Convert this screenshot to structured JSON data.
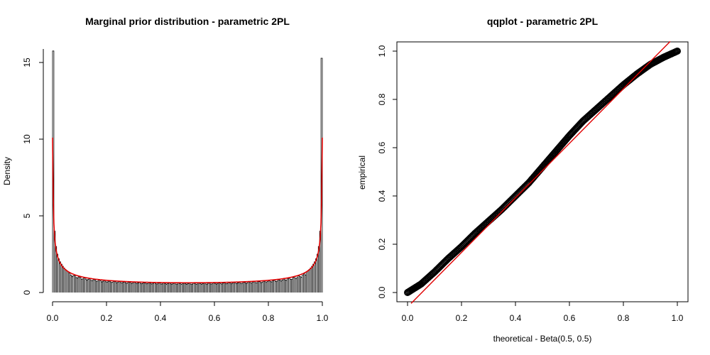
{
  "chart_data": [
    {
      "type": "bar",
      "subtype": "histogram with density curve",
      "title": "Marginal prior distribution - parametric 2PL",
      "xlabel": "",
      "ylabel": "Density",
      "xlim": [
        0,
        1
      ],
      "ylim": [
        0,
        15.75
      ],
      "xticks": [
        "0.0",
        "0.2",
        "0.4",
        "0.6",
        "0.8",
        "1.0"
      ],
      "yticks": [
        "0",
        "5",
        "10",
        "15"
      ],
      "grid": false,
      "bin_width": 0.005,
      "histogram": {
        "color": "#000000",
        "values": [
          15.75,
          4.0,
          3.0,
          2.5,
          2.2,
          2.0,
          1.85,
          1.72,
          1.6,
          1.5,
          1.42,
          1.36
        ]
      },
      "curve": {
        "color": "#e00000",
        "distribution": "Beta(0.5, 0.5)",
        "peak_value": 10.1
      }
    },
    {
      "type": "scatter",
      "title": "qqplot - parametric 2PL",
      "xlabel": "theoretical - Beta(0.5, 0.5)",
      "ylabel": "empirical",
      "xlim": [
        0,
        1
      ],
      "ylim": [
        0,
        1
      ],
      "xticks": [
        "0.0",
        "0.2",
        "0.4",
        "0.6",
        "0.8",
        "1.0"
      ],
      "yticks": [
        "0.0",
        "0.2",
        "0.4",
        "0.6",
        "0.8",
        "1.0"
      ],
      "grid": false,
      "points_color": "#000000",
      "points": [
        [
          0.0,
          0.0
        ],
        [
          0.05,
          0.035
        ],
        [
          0.1,
          0.085
        ],
        [
          0.15,
          0.14
        ],
        [
          0.2,
          0.19
        ],
        [
          0.25,
          0.245
        ],
        [
          0.3,
          0.295
        ],
        [
          0.35,
          0.345
        ],
        [
          0.4,
          0.4
        ],
        [
          0.45,
          0.455
        ],
        [
          0.5,
          0.52
        ],
        [
          0.55,
          0.585
        ],
        [
          0.6,
          0.65
        ],
        [
          0.65,
          0.71
        ],
        [
          0.7,
          0.76
        ],
        [
          0.75,
          0.81
        ],
        [
          0.8,
          0.86
        ],
        [
          0.85,
          0.905
        ],
        [
          0.9,
          0.945
        ],
        [
          0.95,
          0.975
        ],
        [
          1.0,
          1.0
        ]
      ],
      "reference_line": {
        "color": "#e00000",
        "intercept": -0.06,
        "slope": 1.13
      }
    }
  ]
}
